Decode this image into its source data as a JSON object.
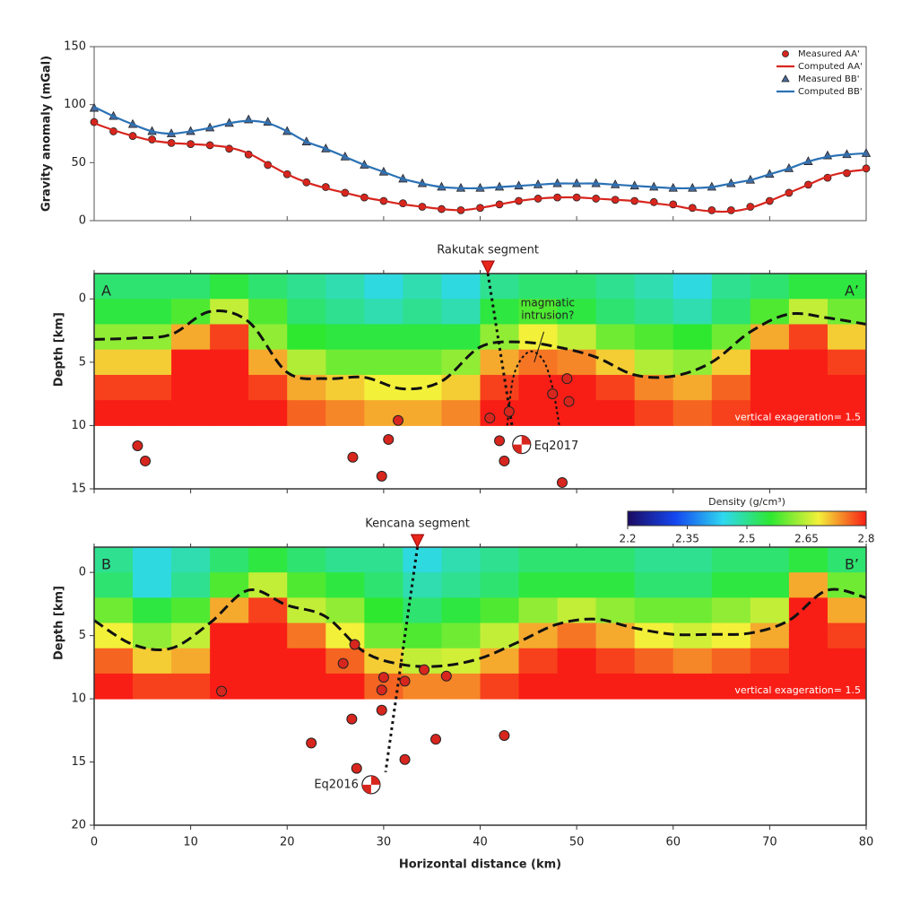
{
  "chart_data": [
    {
      "type": "line",
      "ylabel": "Gravity anomaly (mGal)",
      "xlim": [
        0,
        80
      ],
      "xticks": [
        0,
        10,
        20,
        30,
        40,
        50,
        60,
        70,
        80
      ],
      "ylim": [
        0,
        150
      ],
      "yticks": [
        0,
        50,
        100,
        150
      ],
      "legend": "upper right",
      "x": [
        0,
        2,
        4,
        6,
        8,
        10,
        12,
        14,
        16,
        18,
        20,
        22,
        24,
        26,
        28,
        30,
        32,
        34,
        36,
        38,
        40,
        42,
        44,
        46,
        48,
        50,
        52,
        54,
        56,
        58,
        60,
        62,
        64,
        66,
        68,
        70,
        72,
        74,
        76,
        78,
        80
      ],
      "series": [
        {
          "name": "Measured AA'",
          "color": "#d7261e",
          "marker": "circle",
          "values": [
            85,
            77,
            73,
            70,
            67,
            66,
            65,
            62,
            57,
            48,
            40,
            33,
            29,
            24,
            20,
            17,
            15,
            12,
            10,
            9,
            11,
            14,
            17,
            19,
            20,
            20,
            19,
            18,
            17,
            16,
            14,
            11,
            9,
            9,
            12,
            17,
            24,
            31,
            37,
            41,
            45
          ]
        },
        {
          "name": "Computed AA'",
          "color": "#d7261e",
          "values": [
            84,
            78,
            73,
            69,
            67,
            66,
            65,
            63,
            58,
            49,
            40,
            33,
            28,
            24,
            20,
            17,
            14,
            12,
            10,
            9,
            11,
            14,
            17,
            19,
            20,
            20,
            19,
            18,
            17,
            15,
            13,
            10,
            8,
            8,
            11,
            17,
            24,
            31,
            38,
            42,
            44
          ]
        },
        {
          "name": "Measured BB'",
          "color": "#4a6a9a",
          "marker": "triangle",
          "values": [
            97,
            90,
            83,
            77,
            75,
            77,
            80,
            84,
            87,
            85,
            77,
            68,
            62,
            55,
            48,
            42,
            36,
            32,
            29,
            28,
            28,
            29,
            30,
            31,
            32,
            32,
            32,
            31,
            30,
            29,
            28,
            28,
            29,
            32,
            35,
            40,
            45,
            51,
            56,
            57,
            58
          ]
        },
        {
          "name": "Computed BB'",
          "color": "#2b72b5",
          "values": [
            98,
            90,
            83,
            77,
            75,
            77,
            80,
            84,
            86,
            84,
            77,
            68,
            62,
            55,
            48,
            42,
            36,
            32,
            29,
            28,
            28,
            29,
            30,
            31,
            32,
            32,
            32,
            31,
            30,
            29,
            28,
            28,
            29,
            32,
            35,
            40,
            45,
            51,
            55,
            57,
            58
          ]
        }
      ]
    },
    {
      "type": "heatmap",
      "ylabel": "Depth [km]",
      "xlim": [
        0,
        80
      ],
      "xticks": [
        0,
        10,
        20,
        30,
        40,
        50,
        60,
        70,
        80
      ],
      "ylim": [
        -2,
        15
      ],
      "yticks": [
        0,
        5,
        10,
        15
      ],
      "left_label": "A",
      "right_label": "A’",
      "note": "vertical exageration= 1.5",
      "grid_x": [
        0,
        4,
        8,
        12,
        16,
        20,
        24,
        28,
        32,
        36,
        40,
        44,
        48,
        52,
        56,
        60,
        64,
        68,
        72,
        76,
        80
      ],
      "grid_depth": [
        -2,
        0,
        2,
        4,
        6,
        8,
        10
      ],
      "density": [
        [
          2.52,
          2.52,
          2.52,
          2.55,
          2.52,
          2.5,
          2.48,
          2.45,
          2.48,
          2.45,
          2.5,
          2.52,
          2.52,
          2.5,
          2.48,
          2.45,
          2.5,
          2.52,
          2.55,
          2.55
        ],
        [
          2.55,
          2.55,
          2.58,
          2.65,
          2.58,
          2.52,
          2.5,
          2.48,
          2.5,
          2.48,
          2.55,
          2.58,
          2.55,
          2.52,
          2.5,
          2.48,
          2.52,
          2.58,
          2.65,
          2.6
        ],
        [
          2.62,
          2.62,
          2.72,
          2.78,
          2.62,
          2.56,
          2.55,
          2.55,
          2.55,
          2.55,
          2.62,
          2.68,
          2.65,
          2.6,
          2.58,
          2.56,
          2.6,
          2.72,
          2.78,
          2.7
        ],
        [
          2.7,
          2.7,
          2.8,
          2.8,
          2.72,
          2.64,
          2.6,
          2.6,
          2.6,
          2.62,
          2.72,
          2.75,
          2.74,
          2.7,
          2.64,
          2.62,
          2.7,
          2.8,
          2.8,
          2.78
        ],
        [
          2.78,
          2.78,
          2.8,
          2.8,
          2.78,
          2.72,
          2.7,
          2.68,
          2.68,
          2.7,
          2.78,
          2.8,
          2.8,
          2.78,
          2.74,
          2.72,
          2.76,
          2.8,
          2.8,
          2.8
        ],
        [
          2.8,
          2.8,
          2.8,
          2.8,
          2.8,
          2.76,
          2.74,
          2.72,
          2.72,
          2.74,
          2.8,
          2.8,
          2.8,
          2.8,
          2.78,
          2.76,
          2.78,
          2.8,
          2.8,
          2.8
        ]
      ],
      "boundary": {
        "x": [
          0,
          4,
          8,
          12,
          16,
          20,
          24,
          28,
          32,
          36,
          40,
          44,
          48,
          52,
          56,
          60,
          64,
          68,
          72,
          76,
          80
        ],
        "depth": [
          3.2,
          3.1,
          2.8,
          1.0,
          1.8,
          5.8,
          6.3,
          6.2,
          7.1,
          6.5,
          3.8,
          3.4,
          3.8,
          4.6,
          6.0,
          6.1,
          5.0,
          2.6,
          1.2,
          1.5,
          2.0
        ]
      },
      "segment": {
        "label": "Rakutak segment",
        "x": 40.8
      },
      "fault": {
        "x": [
          40.8,
          43.3
        ],
        "depth": [
          -2,
          10
        ]
      },
      "intrusion": {
        "label": "magmatic intrusion?",
        "x": [
          42.8,
          43.5,
          45,
          46.5,
          47.5,
          48.2
        ],
        "depth": [
          10,
          6,
          4.2,
          4.8,
          7,
          10
        ]
      },
      "earthquakes": {
        "x": [
          4.5,
          5.3,
          26.8,
          29.8,
          30.5,
          31.5,
          41,
          42,
          42.5,
          43,
          47.5,
          49,
          49.2,
          48.5
        ],
        "depth": [
          11.6,
          12.8,
          12.5,
          14,
          11.1,
          9.6,
          9.4,
          11.2,
          12.8,
          8.9,
          7.5,
          6.3,
          8.1,
          14.5
        ]
      },
      "mechanism": {
        "label": "Eq2017",
        "x": 44.3,
        "depth": 11.5
      }
    },
    {
      "type": "heatmap",
      "ylabel": "Depth [km]",
      "xlabel": "Horizontal distance (km)",
      "xlim": [
        0,
        80
      ],
      "xticks": [
        0,
        10,
        20,
        30,
        40,
        50,
        60,
        70,
        80
      ],
      "ylim": [
        -2,
        20
      ],
      "yticks": [
        0,
        5,
        10,
        15,
        20
      ],
      "left_label": "B",
      "right_label": "B’",
      "note": "vertical exageration= 1.5",
      "grid_x": [
        0,
        4,
        8,
        12,
        16,
        20,
        24,
        28,
        32,
        36,
        40,
        44,
        48,
        52,
        56,
        60,
        64,
        68,
        72,
        76,
        80
      ],
      "grid_depth": [
        -2,
        0,
        2,
        4,
        6,
        8,
        10
      ],
      "density": [
        [
          2.5,
          2.45,
          2.48,
          2.52,
          2.55,
          2.52,
          2.5,
          2.5,
          2.45,
          2.48,
          2.5,
          2.52,
          2.52,
          2.52,
          2.5,
          2.5,
          2.52,
          2.52,
          2.55,
          2.52
        ],
        [
          2.52,
          2.45,
          2.5,
          2.58,
          2.65,
          2.58,
          2.55,
          2.52,
          2.48,
          2.5,
          2.52,
          2.55,
          2.55,
          2.55,
          2.52,
          2.52,
          2.55,
          2.55,
          2.72,
          2.6
        ],
        [
          2.6,
          2.55,
          2.58,
          2.72,
          2.78,
          2.65,
          2.62,
          2.56,
          2.52,
          2.55,
          2.58,
          2.62,
          2.65,
          2.62,
          2.6,
          2.6,
          2.62,
          2.65,
          2.8,
          2.72
        ],
        [
          2.68,
          2.62,
          2.65,
          2.8,
          2.8,
          2.75,
          2.68,
          2.6,
          2.58,
          2.6,
          2.65,
          2.72,
          2.75,
          2.72,
          2.68,
          2.66,
          2.68,
          2.72,
          2.8,
          2.78
        ],
        [
          2.76,
          2.7,
          2.72,
          2.8,
          2.8,
          2.8,
          2.76,
          2.7,
          2.65,
          2.66,
          2.72,
          2.78,
          2.8,
          2.78,
          2.76,
          2.74,
          2.76,
          2.78,
          2.8,
          2.8
        ],
        [
          2.8,
          2.78,
          2.78,
          2.8,
          2.8,
          2.8,
          2.8,
          2.76,
          2.74,
          2.74,
          2.78,
          2.8,
          2.8,
          2.8,
          2.8,
          2.8,
          2.8,
          2.8,
          2.8,
          2.8
        ]
      ],
      "boundary": {
        "x": [
          0,
          4,
          8,
          12,
          16,
          20,
          24,
          28,
          32,
          36,
          40,
          44,
          48,
          52,
          56,
          60,
          64,
          68,
          72,
          76,
          80
        ],
        "depth": [
          3.8,
          5.7,
          6.0,
          4.0,
          1.4,
          2.6,
          3.5,
          6.3,
          7.3,
          7.4,
          6.8,
          5.5,
          4.1,
          3.7,
          4.4,
          4.9,
          4.9,
          4.8,
          3.8,
          1.4,
          2.0
        ]
      },
      "segment": {
        "label": "Kencana segment",
        "x": 33.5
      },
      "fault": {
        "x": [
          33.5,
          30.2
        ],
        "depth": [
          -2,
          15.8
        ]
      },
      "earthquakes": {
        "x": [
          13.2,
          25.8,
          27,
          29.8,
          30,
          32.2,
          34.2,
          36.5,
          29.8,
          26.7,
          22.5,
          27.2,
          32.2,
          35.4,
          42.5
        ],
        "depth": [
          9.4,
          7.2,
          5.7,
          9.3,
          8.3,
          8.6,
          7.7,
          8.2,
          10.9,
          11.6,
          13.5,
          15.5,
          14.8,
          13.2,
          12.9
        ]
      },
      "mechanism": {
        "label": "Eq2016",
        "x": 28.7,
        "depth": 16.8
      },
      "colorbar": {
        "label": "Density (g/cm³)",
        "clim": [
          2.2,
          2.8
        ],
        "ticks": [
          2.2,
          2.35,
          2.5,
          2.65,
          2.8
        ],
        "colors": [
          "#1b0b61",
          "#1446f0",
          "#2fd8f0",
          "#2ee830",
          "#f3f03a",
          "#f81e16"
        ]
      }
    }
  ]
}
